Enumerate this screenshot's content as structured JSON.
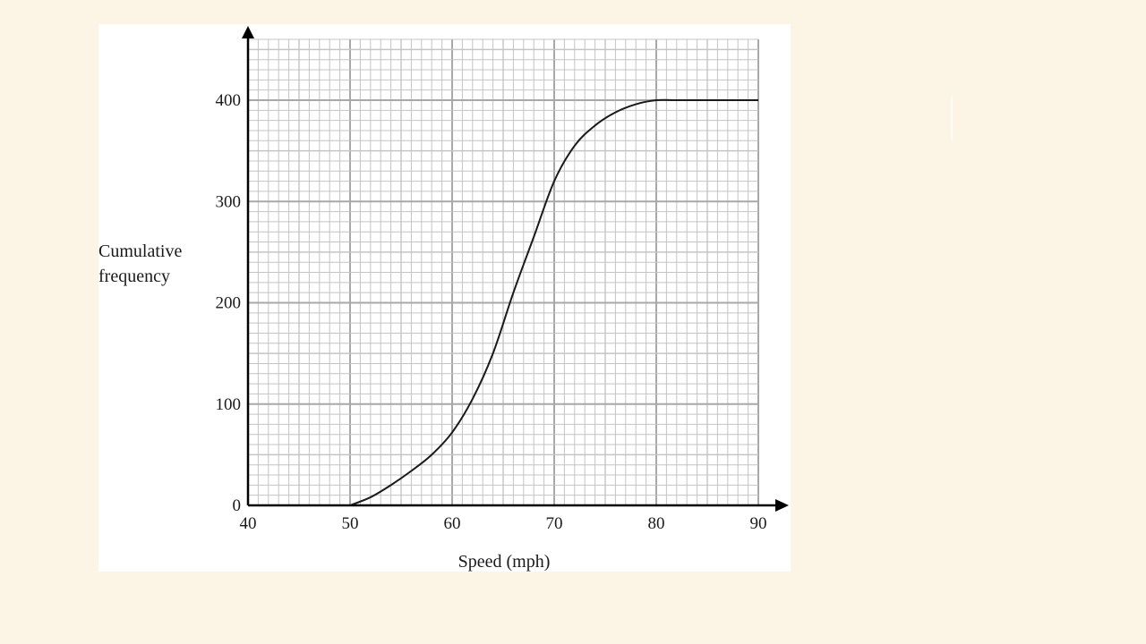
{
  "chart_data": {
    "type": "line",
    "title": "",
    "xlabel": "Speed (mph)",
    "ylabel": [
      "Cumulative",
      "frequency"
    ],
    "xlim": [
      40,
      90
    ],
    "ylim": [
      0,
      400
    ],
    "grid_top": 460,
    "x_ticks": [
      40,
      50,
      60,
      70,
      80,
      90
    ],
    "y_ticks": [
      0,
      100,
      200,
      300,
      400
    ],
    "x_tick_labels": [
      "40",
      "50",
      "60",
      "70",
      "80",
      "90"
    ],
    "y_tick_labels": [
      "0",
      "100",
      "200",
      "300",
      "400"
    ],
    "grid": true,
    "series": [
      {
        "x": [
          50,
          52,
          54,
          56,
          58,
          60,
          62,
          64,
          66,
          68,
          70,
          72,
          74,
          76,
          78,
          80,
          82,
          84,
          86,
          88,
          90
        ],
        "y": [
          0,
          8,
          20,
          34,
          50,
          72,
          105,
          150,
          210,
          265,
          320,
          355,
          375,
          388,
          396,
          400,
          400,
          400,
          400,
          400,
          400
        ]
      }
    ]
  },
  "colors": {
    "background": "#fcf5e5",
    "panel": "#ffffff",
    "grid_major": "#a8a8a8",
    "grid_minor": "#c4c4c4",
    "curve": "#1a1a1a",
    "axis": "#000000"
  }
}
